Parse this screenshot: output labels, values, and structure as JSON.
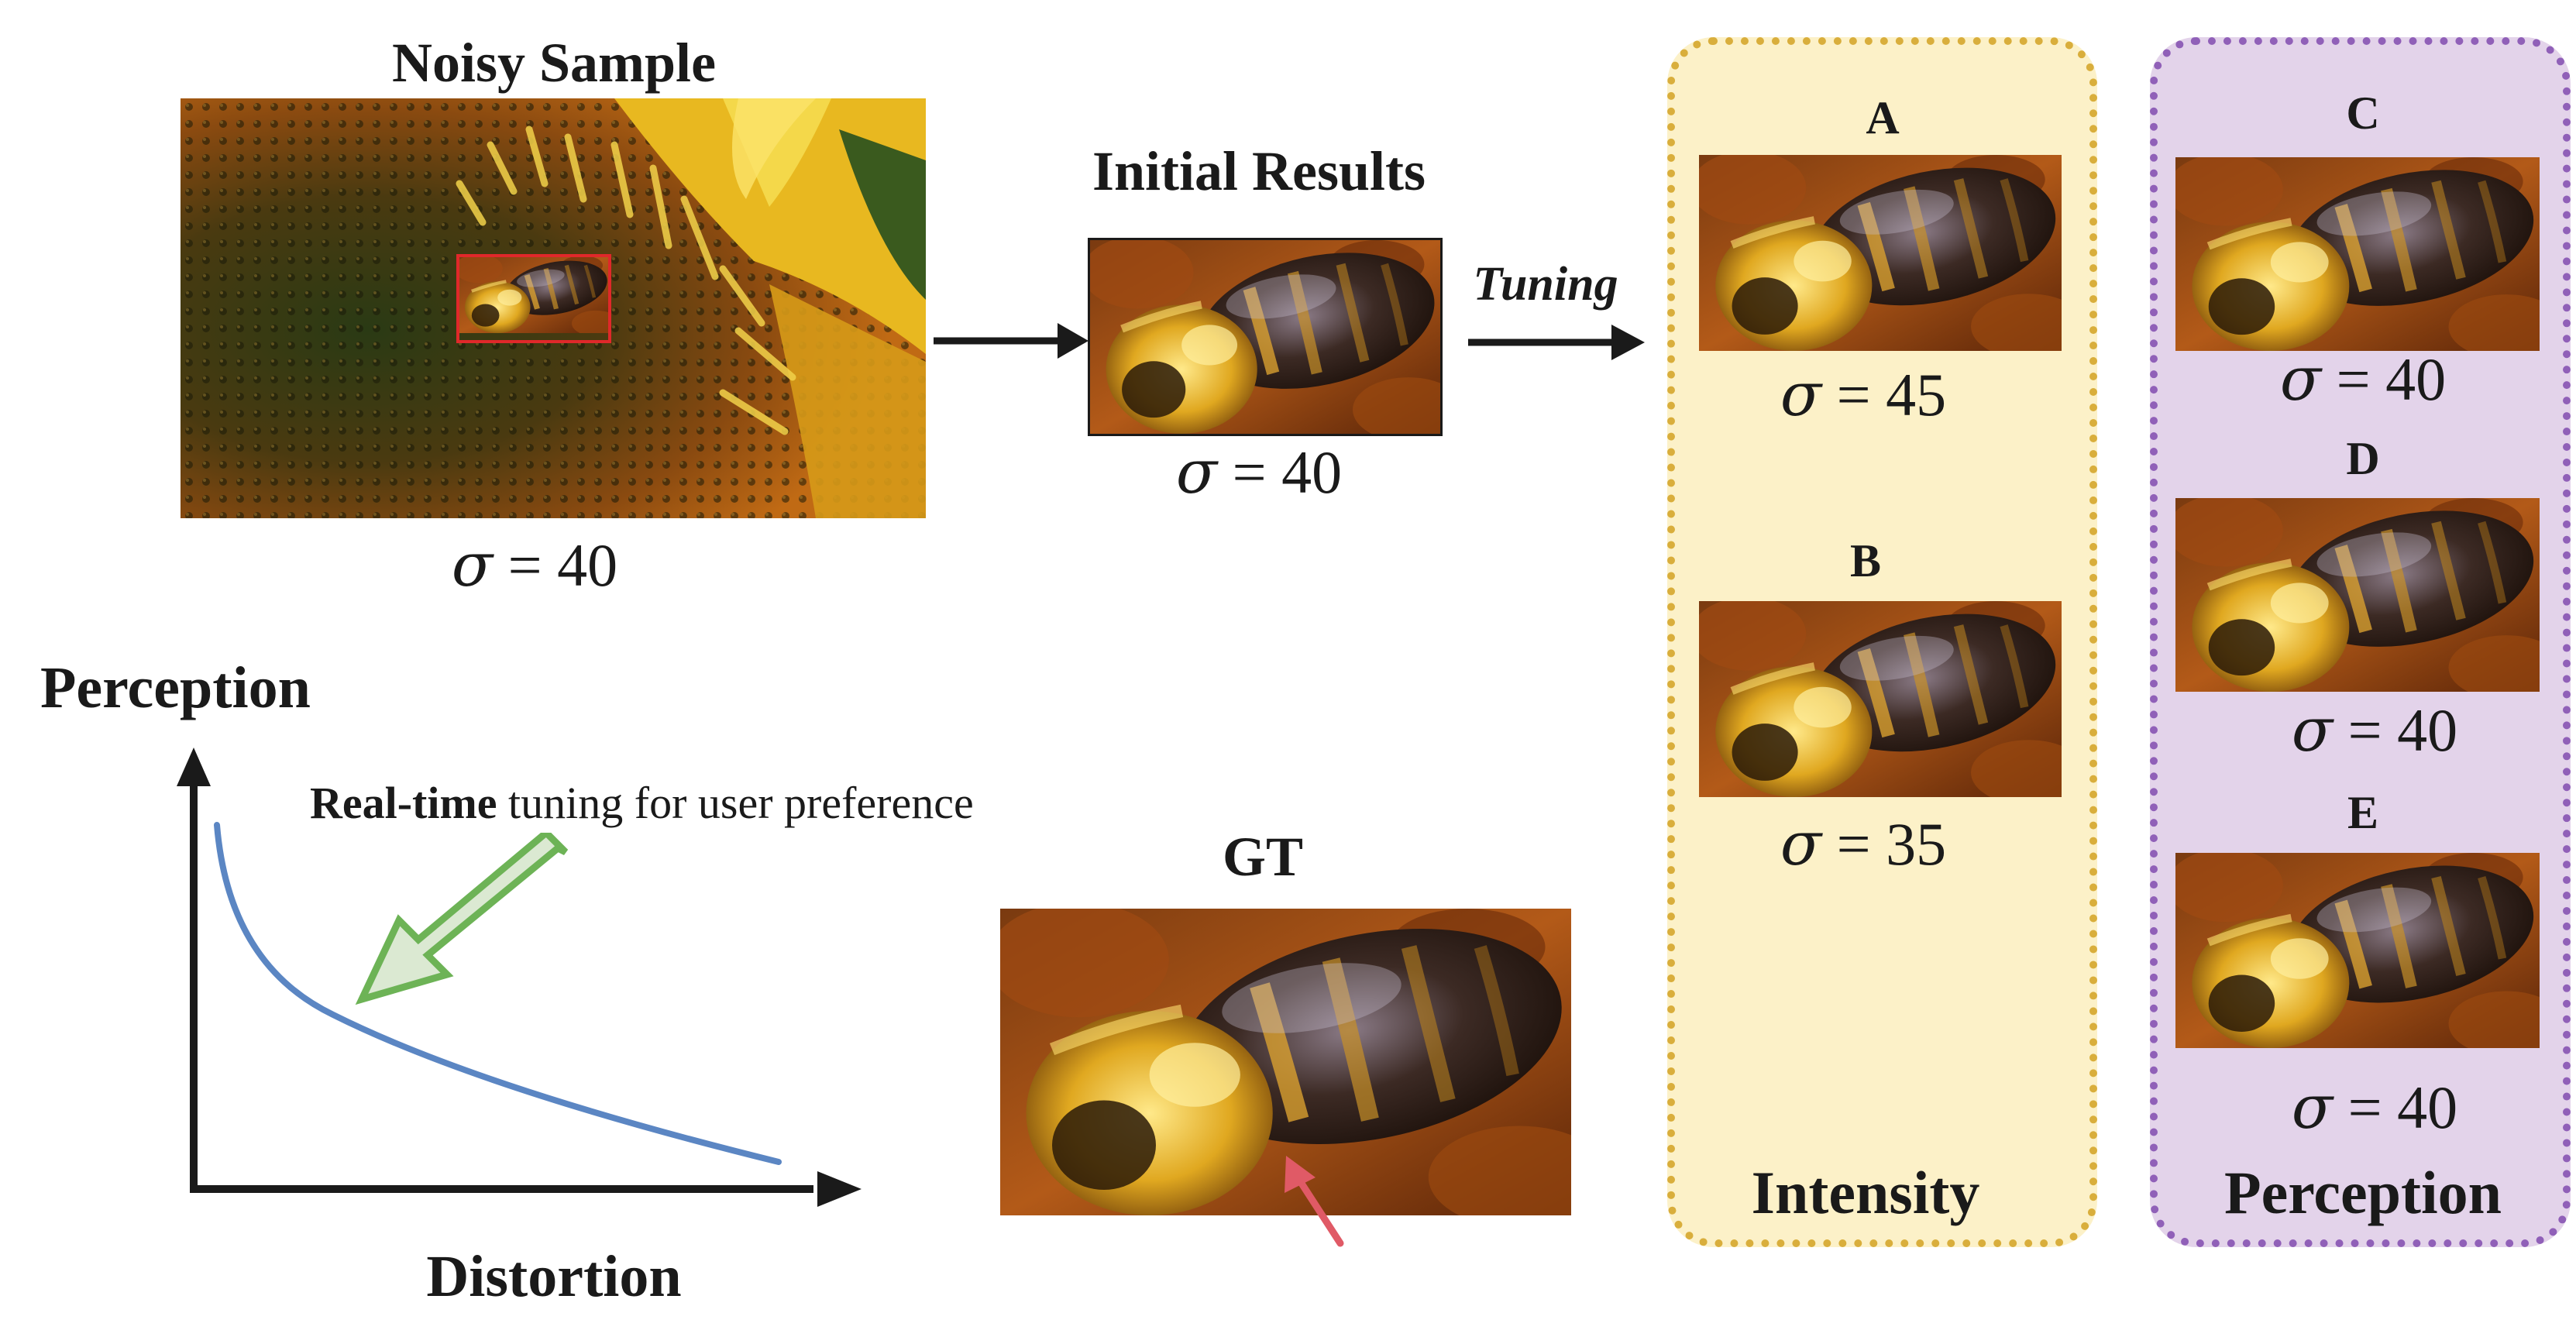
{
  "noisy": {
    "title": "Noisy Sample",
    "sigma_symbol": "σ",
    "sigma_rel": "=",
    "sigma_value": "40"
  },
  "initial": {
    "title": "Initial Results",
    "sigma_symbol": "σ",
    "sigma_rel": "=",
    "sigma_value": "40"
  },
  "tuning_label": "Tuning",
  "intensity_panel": {
    "label": "Intensity",
    "color": "#d9ae3c",
    "fill": "#fcf1c8",
    "items": [
      {
        "letter": "A",
        "sigma_symbol": "σ",
        "sigma_rel": "=",
        "sigma_value": "45"
      },
      {
        "letter": "B",
        "sigma_symbol": "σ",
        "sigma_rel": "=",
        "sigma_value": "35"
      }
    ]
  },
  "perception_panel": {
    "label": "Perception",
    "color": "#9060b8",
    "fill": "#e3d3ea",
    "items": [
      {
        "letter": "C",
        "sigma_symbol": "σ",
        "sigma_rel": "=",
        "sigma_value": "40"
      },
      {
        "letter": "D",
        "sigma_symbol": "σ",
        "sigma_rel": "=",
        "sigma_value": "40"
      },
      {
        "letter": "E",
        "sigma_symbol": "σ",
        "sigma_rel": "=",
        "sigma_value": "40"
      }
    ]
  },
  "gt": {
    "title": "GT"
  },
  "tradeoff": {
    "y_label": "Perception",
    "x_label": "Distortion",
    "note_bold": "Real-time",
    "note_rest": " tuning for user preference",
    "curve_color": "#5b86c3",
    "arrow_color": "#6db356",
    "arrow_fill": "#dbe9d2"
  },
  "gt_marker_color": "#e05a66"
}
